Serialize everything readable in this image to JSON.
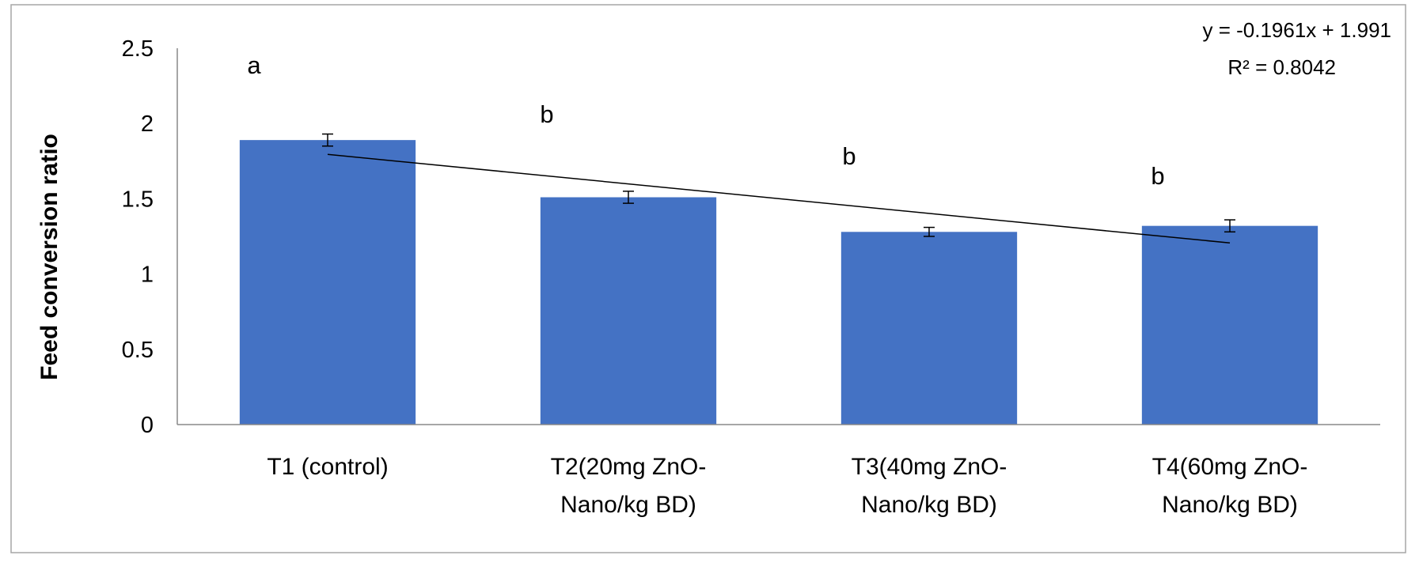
{
  "chart_data": {
    "type": "bar",
    "categories": [
      [
        "T1 (control)"
      ],
      [
        "T2(20mg  ZnO-",
        "Nano/kg BD)"
      ],
      [
        "T3(40mg  ZnO-",
        "Nano/kg BD)"
      ],
      [
        "T4(60mg  ZnO-",
        "Nano/kg BD)"
      ]
    ],
    "values": [
      1.89,
      1.51,
      1.28,
      1.32
    ],
    "error": [
      0.04,
      0.04,
      0.03,
      0.04
    ],
    "significance_letters": [
      "a",
      "b",
      "b",
      "b"
    ],
    "ylabel": "Feed  conversion ratio",
    "xlabel": "",
    "ylim": [
      0,
      2.5
    ],
    "yticks": [
      0,
      0.5,
      1,
      1.5,
      2,
      2.5
    ],
    "ytick_labels": [
      "0",
      "0.5",
      "1",
      "1.5",
      "2",
      "2.5"
    ],
    "grid": false,
    "trendline": {
      "type": "linear",
      "slope": -0.1961,
      "intercept": 1.991,
      "equation_label": "y = -0.1961x + 1.991",
      "r2_label": "R² = 0.8042"
    },
    "colors": {
      "bar": "#4472C4",
      "axis": "#888888",
      "trendline": "#000000",
      "frame": "#a6a6a6",
      "text": "#000000"
    }
  }
}
